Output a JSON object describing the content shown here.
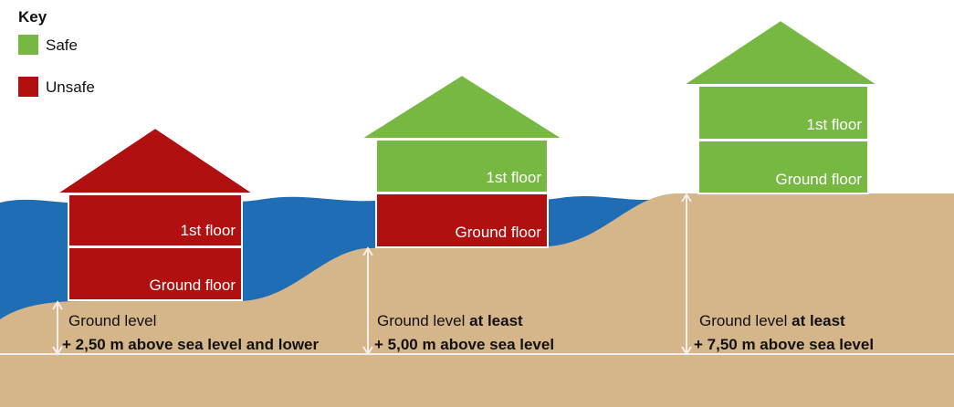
{
  "key": {
    "title": "Key",
    "items": [
      {
        "label": "Safe"
      },
      {
        "label": "Unsafe"
      }
    ]
  },
  "houses": [
    {
      "floors": [
        "1st floor",
        "Ground floor"
      ],
      "ground_level": {
        "label": "Ground level",
        "height": "+ 2,50 m above sea level and lower"
      }
    },
    {
      "floors": [
        "1st floor",
        "Ground floor"
      ],
      "ground_level": {
        "label": "Ground level",
        "emphasis": "at least",
        "height": "+ 5,00 m above sea level"
      }
    },
    {
      "floors": [
        "1st floor",
        "Ground floor"
      ],
      "ground_level": {
        "label": "Ground level",
        "emphasis": "at least",
        "height": "+ 7,50 m above sea level"
      }
    }
  ]
}
